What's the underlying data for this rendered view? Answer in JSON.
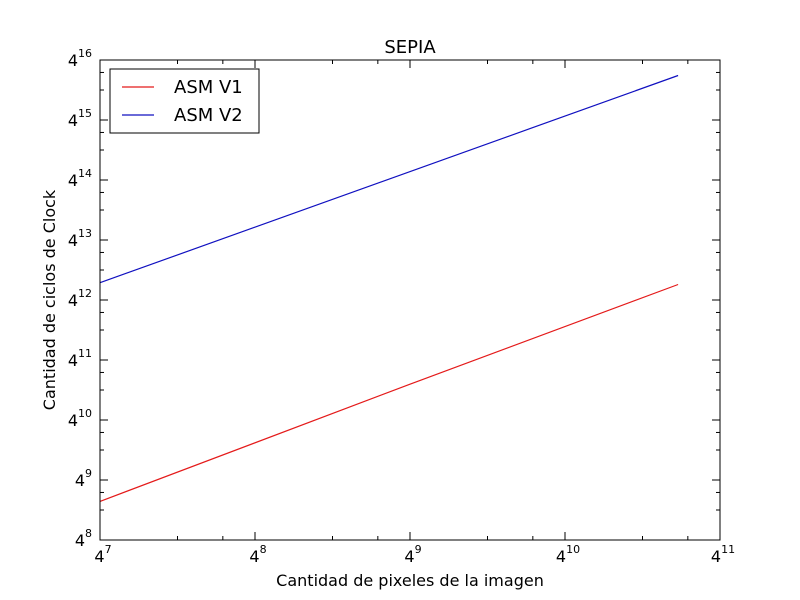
{
  "chart_data": {
    "type": "line",
    "title": "SEPIA",
    "xlabel": "Cantidad de pixeles de la imagen",
    "ylabel": "Cantidad de ciclos de Clock",
    "xscale": "log4",
    "yscale": "log4",
    "xlim": [
      16384,
      4194304
    ],
    "ylim": [
      65536,
      4294967296
    ],
    "x_ticks": [
      {
        "base": "4",
        "exp": "7"
      },
      {
        "base": "4",
        "exp": "8"
      },
      {
        "base": "4",
        "exp": "9"
      },
      {
        "base": "4",
        "exp": "10"
      },
      {
        "base": "4",
        "exp": "11"
      }
    ],
    "y_ticks": [
      {
        "base": "4",
        "exp": "8"
      },
      {
        "base": "4",
        "exp": "9"
      },
      {
        "base": "4",
        "exp": "10"
      },
      {
        "base": "4",
        "exp": "11"
      },
      {
        "base": "4",
        "exp": "12"
      },
      {
        "base": "4",
        "exp": "13"
      },
      {
        "base": "4",
        "exp": "14"
      },
      {
        "base": "4",
        "exp": "15"
      },
      {
        "base": "4",
        "exp": "16"
      }
    ],
    "legend": "top-left",
    "grid": false,
    "series": [
      {
        "name": "ASM V1",
        "color": "#e41a1a",
        "x": [
          16384,
          262144,
          2883584
        ],
        "y": [
          160000,
          2400000,
          24000000
        ]
      },
      {
        "name": "ASM V2",
        "color": "#1010c0",
        "x": [
          16384,
          2883584
        ],
        "y": [
          25000000,
          3000000000
        ]
      }
    ]
  }
}
